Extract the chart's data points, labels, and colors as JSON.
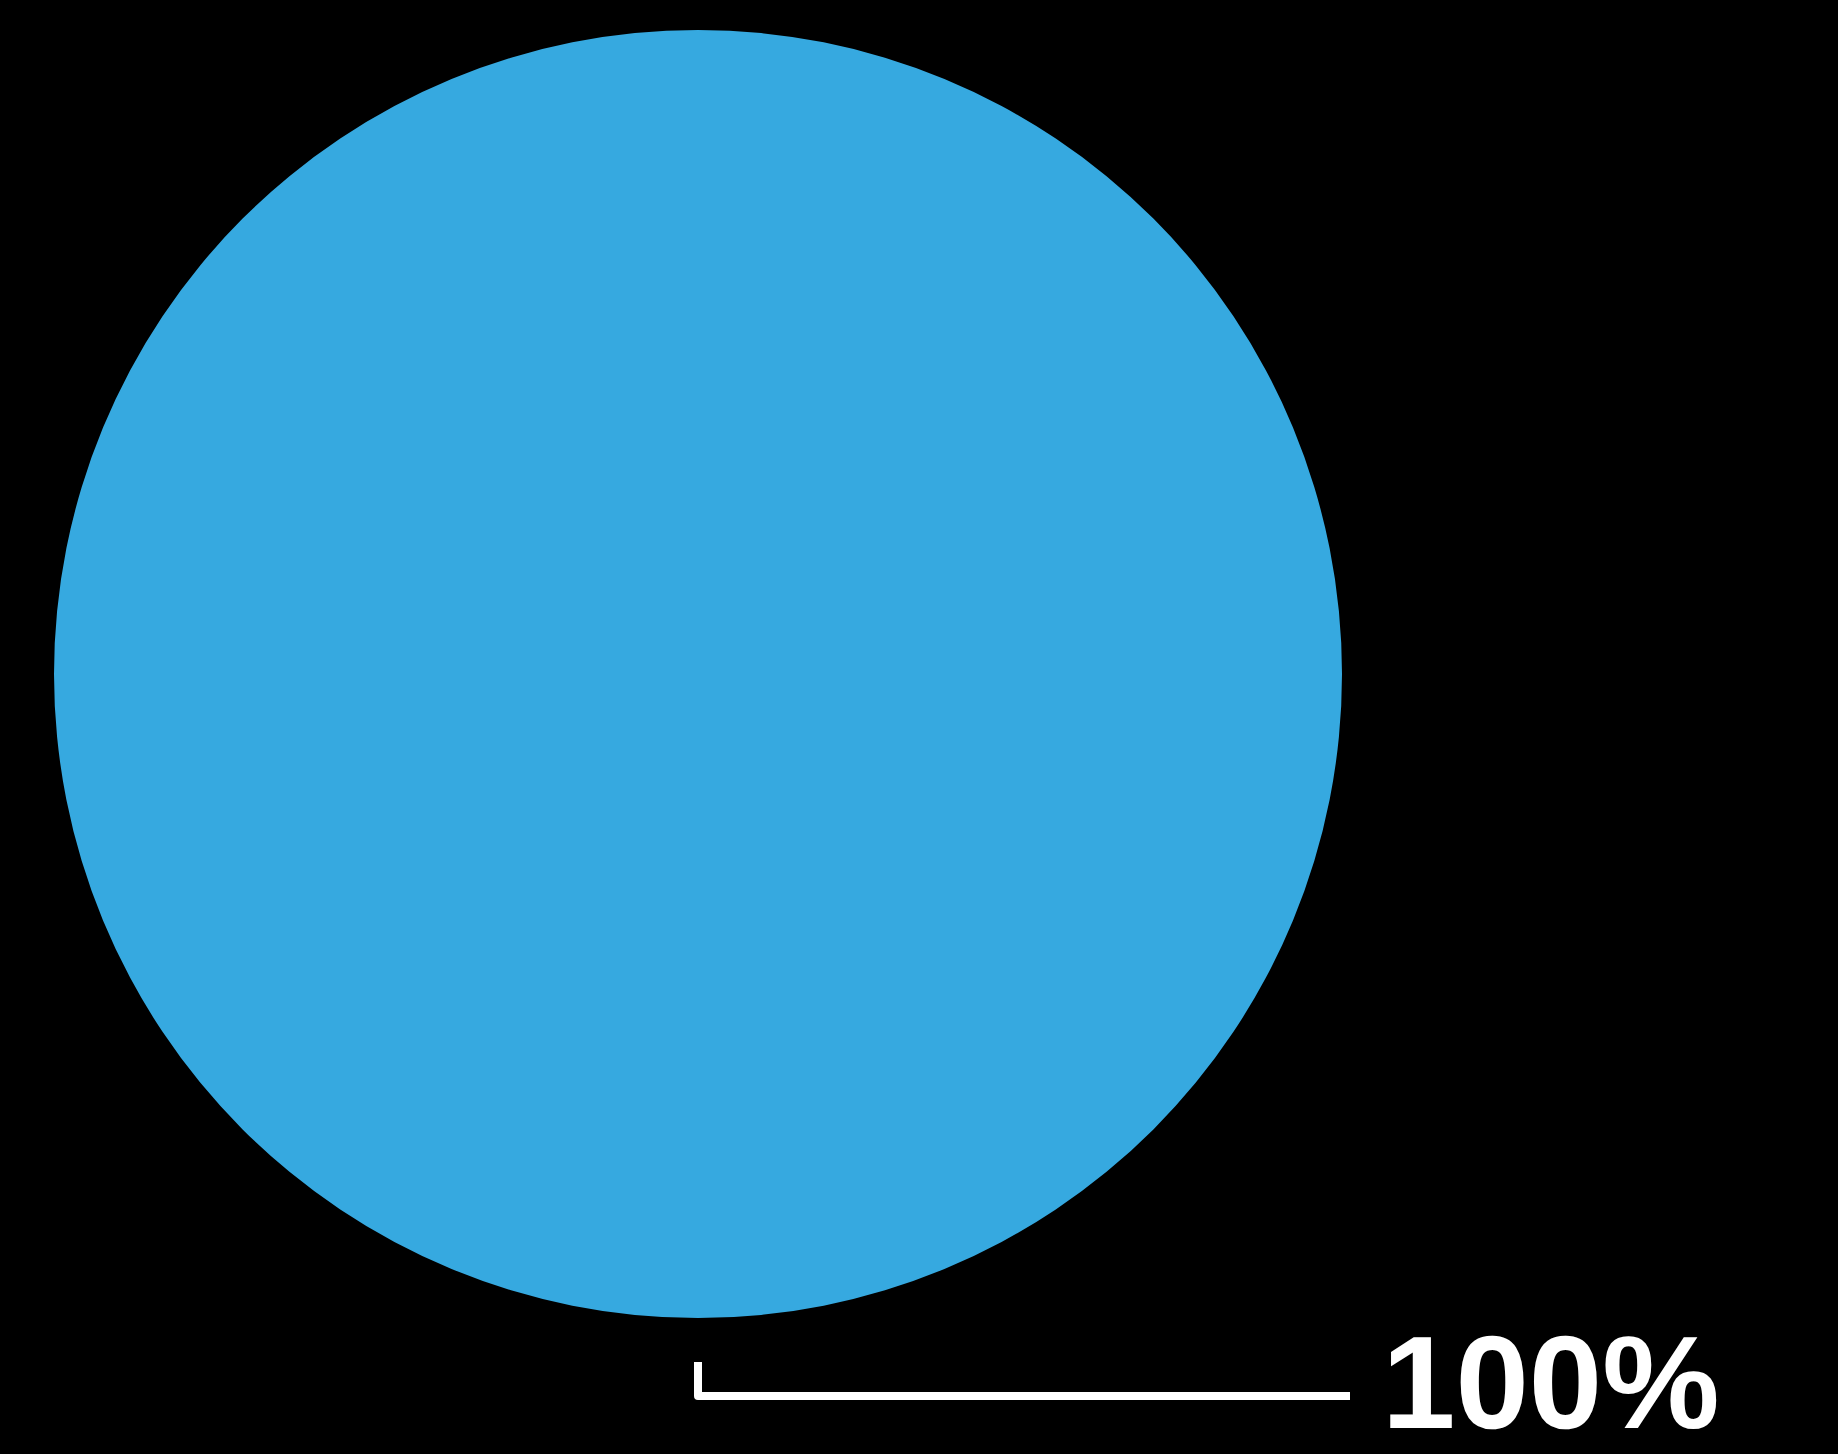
{
  "chart_data": {
    "type": "pie",
    "categories": [
      null
    ],
    "values": [
      100
    ],
    "colors": [
      "#36a9e0"
    ],
    "value_labels": [
      "100%"
    ],
    "legend": false
  }
}
